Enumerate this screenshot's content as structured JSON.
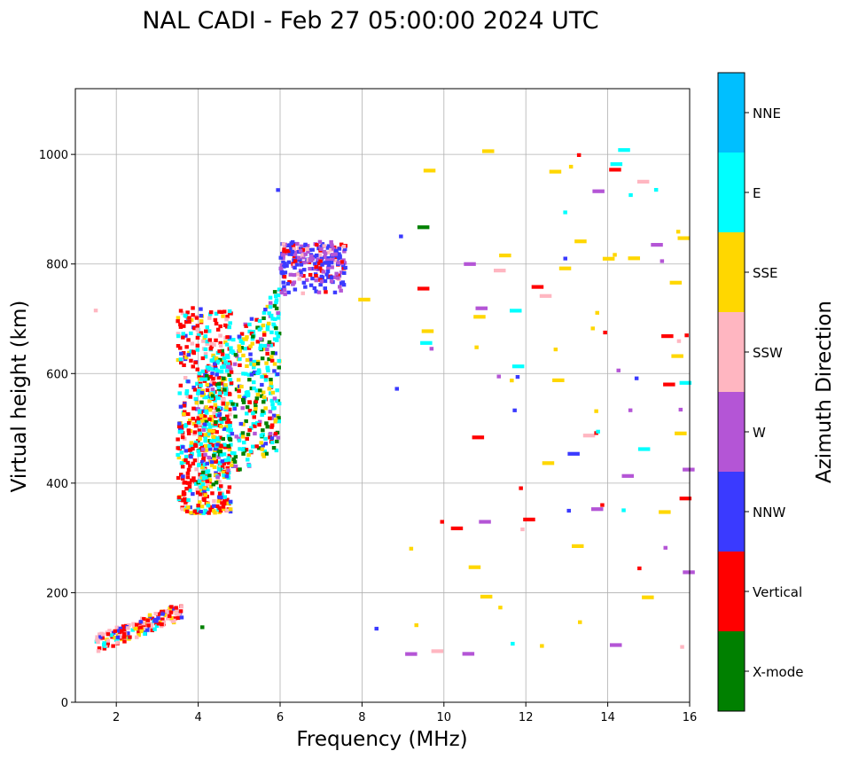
{
  "chart_data": {
    "type": "scatter",
    "title": "NAL CADI - Feb 27 05:00:00 2024 UTC",
    "xlabel": "Frequency (MHz)",
    "ylabel": "Virtual height (km)",
    "xlim": [
      1,
      16
    ],
    "ylim": [
      0,
      1120
    ],
    "xticks": [
      2,
      4,
      6,
      8,
      10,
      12,
      14,
      16
    ],
    "yticks": [
      0,
      200,
      400,
      600,
      800,
      1000
    ],
    "grid": true,
    "colorbar": {
      "title": "Azimuth Direction",
      "categories": [
        {
          "name": "X-mode",
          "color": "#008000"
        },
        {
          "name": "Vertical",
          "color": "#ff0000"
        },
        {
          "name": "NNW",
          "color": "#3a3aff"
        },
        {
          "name": "W",
          "color": "#b455d6"
        },
        {
          "name": "SSW",
          "color": "#ffb6c1"
        },
        {
          "name": "SSE",
          "color": "#ffd700"
        },
        {
          "name": "E",
          "color": "#00ffff"
        },
        {
          "name": "NNE",
          "color": "#00bfff"
        }
      ]
    },
    "clusters": [
      {
        "name": "E-layer trace",
        "f_range": [
          1.5,
          3.6
        ],
        "h_range": [
          90,
          170
        ],
        "dist": "linear",
        "dir_weights": {
          "Vertical": 4,
          "SSW": 3,
          "SSE": 2,
          "E": 1,
          "NNW": 1
        }
      },
      {
        "name": "F-layer lower trace",
        "f_range": [
          3.5,
          4.8
        ],
        "h_range": [
          345,
          720
        ],
        "dist": "uniform",
        "dir_weights": {
          "Vertical": 5,
          "E": 2,
          "SSE": 1,
          "SSW": 1,
          "NNW": 1
        }
      },
      {
        "name": "F-layer spread",
        "f_range": [
          4.0,
          6.0
        ],
        "h_range": [
          380,
          760
        ],
        "dist": "uniform",
        "dir_weights": {
          "E": 5,
          "X-mode": 2,
          "Vertical": 1,
          "SSE": 2,
          "NNW": 1,
          "W": 1
        }
      },
      {
        "name": "F2 cusp",
        "f_range": [
          6.0,
          7.6
        ],
        "h_range": [
          740,
          845
        ],
        "dist": "uniform",
        "dir_weights": {
          "NNW": 5,
          "W": 4,
          "Vertical": 2,
          "SSW": 1
        }
      },
      {
        "name": "Sparse high-frequency echoes",
        "f_range": [
          8.0,
          16.0
        ],
        "h_range": [
          80,
          1010
        ],
        "dist": "uniform",
        "dir_weights": {
          "SSE": 6,
          "W": 3,
          "Vertical": 2,
          "NNW": 2,
          "E": 1,
          "SSW": 1
        }
      }
    ],
    "isolated_points": [
      {
        "f": 1.5,
        "h": 715,
        "dir": "SSW"
      },
      {
        "f": 4.1,
        "h": 137,
        "dir": "X-mode"
      },
      {
        "f": 5.95,
        "h": 935,
        "dir": "NNW"
      },
      {
        "f": 9.5,
        "h": 867,
        "dir": "X-mode"
      },
      {
        "f": 9.5,
        "h": 755,
        "dir": "Vertical"
      },
      {
        "f": 9.2,
        "h": 88,
        "dir": "W"
      },
      {
        "f": 14.4,
        "h": 1008,
        "dir": "E"
      },
      {
        "f": 15.2,
        "h": 835,
        "dir": "W"
      },
      {
        "f": 15.5,
        "h": 580,
        "dir": "Vertical"
      },
      {
        "f": 15.9,
        "h": 583,
        "dir": "E"
      },
      {
        "f": 15.9,
        "h": 372,
        "dir": "Vertical"
      }
    ]
  }
}
